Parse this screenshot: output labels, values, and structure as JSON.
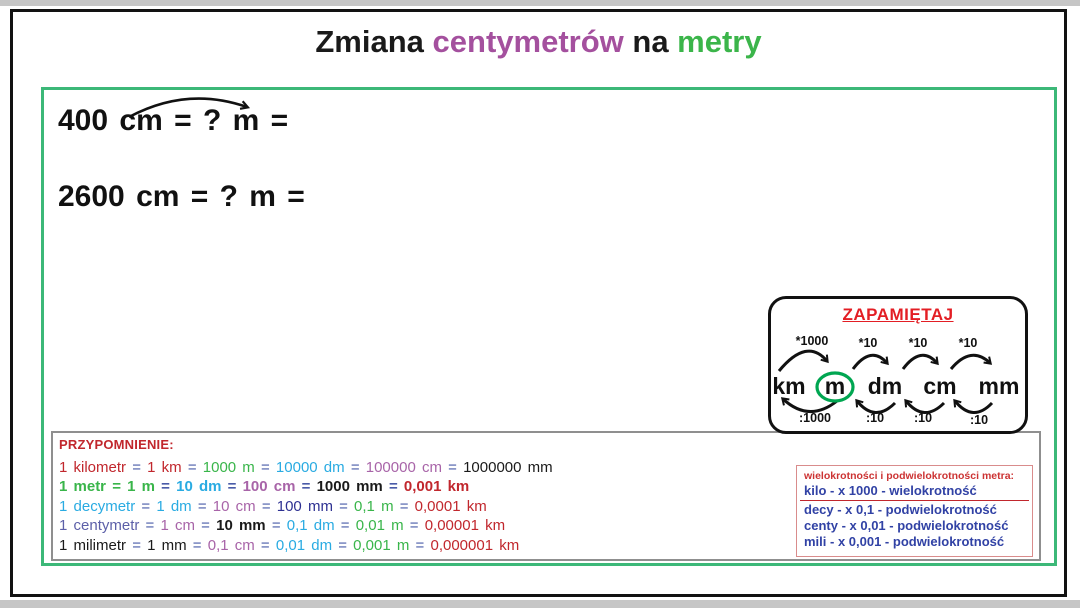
{
  "title": {
    "parts": [
      {
        "text": "Zmiana ",
        "color": "#1a1a1a"
      },
      {
        "text": "centymetrów",
        "color": "#a4509e"
      },
      {
        "text": " na ",
        "color": "#1a1a1a"
      },
      {
        "text": "metry",
        "color": "#3bb54a"
      }
    ]
  },
  "equations": [
    {
      "text": "400 cm = ? m ="
    },
    {
      "text": "2600 cm = ? m ="
    }
  ],
  "zapamietaj": {
    "title": "ZAPAMIĘTAJ",
    "units": [
      "km",
      "m",
      "dm",
      "cm",
      "mm"
    ],
    "circled_unit": "m",
    "top_labels": [
      "*1000",
      "*10",
      "*10",
      "*10"
    ],
    "bottom_labels": [
      ":1000",
      ":10",
      ":10",
      ":10"
    ]
  },
  "reminder": {
    "label": "PRZYPOMNIENIE:",
    "lines": [
      {
        "segments": [
          {
            "t": "1 kilometr",
            "c": "red"
          },
          {
            "t": "=",
            "c": "eq"
          },
          {
            "t": "1 km",
            "c": "red"
          },
          {
            "t": "=",
            "c": "eq"
          },
          {
            "t": "1000 m",
            "c": "green"
          },
          {
            "t": "=",
            "c": "eq"
          },
          {
            "t": "10000 dm",
            "c": "cyan"
          },
          {
            "t": "=",
            "c": "eq"
          },
          {
            "t": "100000 cm",
            "c": "purple"
          },
          {
            "t": "=",
            "c": "eq"
          },
          {
            "t": "1000000 mm",
            "c": "black"
          }
        ]
      },
      {
        "segments": [
          {
            "t": "1 metr",
            "c": "green",
            "b": true
          },
          {
            "t": "=",
            "c": "green",
            "b": true
          },
          {
            "t": "1 m",
            "c": "green",
            "b": true
          },
          {
            "t": "=",
            "c": "eq",
            "b": true
          },
          {
            "t": "10 dm",
            "c": "cyan",
            "b": true
          },
          {
            "t": "=",
            "c": "eq",
            "b": true
          },
          {
            "t": "100 cm",
            "c": "purple",
            "b": true
          },
          {
            "t": "=",
            "c": "eq",
            "b": true
          },
          {
            "t": "1000 mm",
            "c": "black",
            "b": true
          },
          {
            "t": "=",
            "c": "eq",
            "b": true
          },
          {
            "t": "0,001 km",
            "c": "red",
            "b": true
          }
        ]
      },
      {
        "segments": [
          {
            "t": "1 decymetr",
            "c": "cyan"
          },
          {
            "t": "=",
            "c": "eq"
          },
          {
            "t": "1 dm",
            "c": "cyan"
          },
          {
            "t": "=",
            "c": "eq"
          },
          {
            "t": "10 cm",
            "c": "purple"
          },
          {
            "t": "=",
            "c": "eq"
          },
          {
            "t": "100 mm",
            "c": "navy"
          },
          {
            "t": "=",
            "c": "eq"
          },
          {
            "t": "0,1 m",
            "c": "green"
          },
          {
            "t": "=",
            "c": "eq"
          },
          {
            "t": "0,0001 km",
            "c": "red"
          }
        ]
      },
      {
        "segments": [
          {
            "t": "1 centymetr",
            "c": "indigo"
          },
          {
            "t": "=",
            "c": "eq"
          },
          {
            "t": "1 cm",
            "c": "purple"
          },
          {
            "t": "=",
            "c": "eq"
          },
          {
            "t": "10 mm",
            "c": "black",
            "b": true
          },
          {
            "t": "=",
            "c": "eq"
          },
          {
            "t": "0,1 dm",
            "c": "cyan"
          },
          {
            "t": "=",
            "c": "eq"
          },
          {
            "t": "0,01 m",
            "c": "green"
          },
          {
            "t": "=",
            "c": "eq"
          },
          {
            "t": "0,00001 km",
            "c": "red"
          }
        ]
      },
      {
        "segments": [
          {
            "t": "1 milimetr",
            "c": "black"
          },
          {
            "t": "=",
            "c": "eq"
          },
          {
            "t": "1 mm",
            "c": "black"
          },
          {
            "t": "=",
            "c": "eq"
          },
          {
            "t": "0,1 cm",
            "c": "purple"
          },
          {
            "t": "=",
            "c": "eq"
          },
          {
            "t": "0,01 dm",
            "c": "cyan"
          },
          {
            "t": "=",
            "c": "eq"
          },
          {
            "t": "0,001 m",
            "c": "green"
          },
          {
            "t": "=",
            "c": "eq"
          },
          {
            "t": "0,000001 km",
            "c": "red"
          }
        ]
      }
    ]
  },
  "multiples_box": {
    "title": "wielokrotności i podwielokrotności metra:",
    "rows": [
      "kilo - x 1000 - wielokrotność",
      "decy - x 0,1 - podwielokrotność",
      "centy - x 0,01 - podwielokrotność",
      "mili - x 0,001 - podwielokrotność"
    ]
  },
  "colors": {
    "red": "#c1272d",
    "green": "#39b54a",
    "cyan": "#29abe2",
    "purple": "#a864a8",
    "indigo": "#5c5fa8",
    "navy": "#2e3192",
    "black": "#1a1a1a",
    "eq": "#4a5ba8",
    "frame_green": "#3cb878",
    "circle_green": "#00a651",
    "zap_red": "#e31e24",
    "mult_red": "#cc3333",
    "blue_rows": "#3142a5"
  }
}
